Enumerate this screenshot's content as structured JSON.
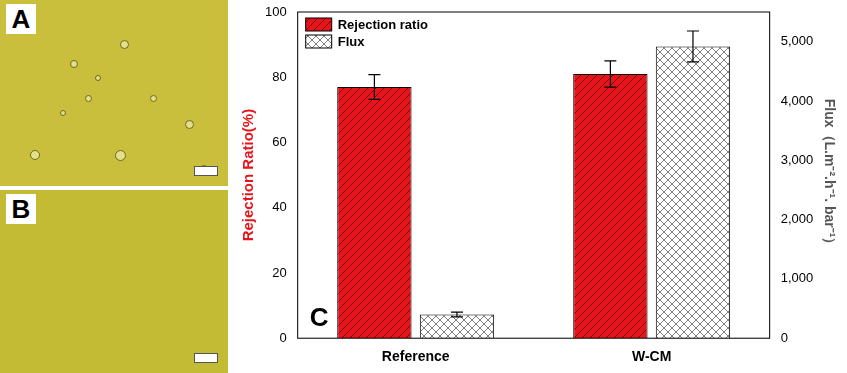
{
  "panels": [
    {
      "label": "A"
    },
    {
      "label": "B"
    }
  ],
  "chart_data": {
    "type": "bar",
    "categories": [
      "Reference",
      "W-CM"
    ],
    "series": [
      {
        "name": "Rejection ratio",
        "color": "#e8141b",
        "values": [
          77,
          81
        ],
        "errors": [
          3.8,
          4
        ]
      },
      {
        "name": "Flux",
        "color": "#808080",
        "values": [
          400,
          4920
        ],
        "errors": [
          40,
          260
        ],
        "axis": "y2"
      }
    ],
    "y_label": "Rejection Ratio(%)",
    "y2_label": "Flux（L.m⁻².h⁻¹. bar⁻¹）",
    "ylim": [
      0,
      100
    ],
    "yticks": [
      0,
      20,
      40,
      60,
      80,
      100
    ],
    "y2lim": [
      0,
      5500
    ],
    "y2ticks": [
      0,
      1000,
      2000,
      3000,
      4000,
      5000
    ],
    "annotations": [
      "C"
    ],
    "legend": "upper left",
    "grid": false
  }
}
